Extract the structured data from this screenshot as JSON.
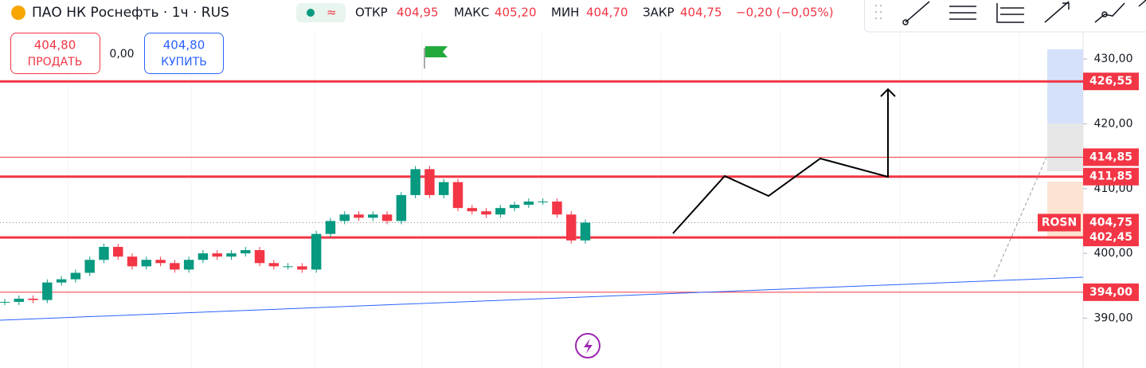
{
  "header": {
    "title": "ПАО НК Роснефть · 1ч · RUS",
    "open_label": "ОТКР",
    "open": "404,95",
    "high_label": "МАКС",
    "high": "405,20",
    "low_label": "МИН",
    "low": "404,70",
    "close_label": "ЗАКР",
    "close": "404,75",
    "change": "−0,20 (−0,05%)"
  },
  "trade": {
    "sell_price": "404,80",
    "sell": "ПРОДАТЬ",
    "spread": "0,00",
    "buy_price": "404,80",
    "buy": "КУПИТЬ"
  },
  "chart_data": {
    "type": "candlestick",
    "series": [
      {
        "name": "ROSN",
        "values": [
          392.5,
          393,
          392.8,
          395.5,
          396,
          397,
          399,
          401,
          399.5,
          398,
          399,
          398.5,
          397.5,
          399,
          400,
          399.5,
          400,
          400.5,
          398.5,
          398,
          398,
          397.5,
          403,
          405,
          406,
          405.5,
          406,
          405,
          409,
          413,
          409,
          411,
          407,
          406.5,
          406,
          407,
          407.5,
          408,
          408,
          406,
          402,
          404.75
        ]
      }
    ],
    "up_color": "#089981",
    "down_color": "#f23645",
    "ylim": [
      382.3,
      434.2
    ],
    "yticks": [
      {
        "value": 390,
        "label": "390,00"
      },
      {
        "value": 400,
        "label": "400,00"
      },
      {
        "value": 410,
        "label": "410,00"
      },
      {
        "value": 420,
        "label": "420,00"
      },
      {
        "value": 430,
        "label": "430,00"
      }
    ],
    "levels": [
      {
        "value": 426.55,
        "label": "426,55",
        "style": "thick"
      },
      {
        "value": 414.85,
        "label": "414,85",
        "style": "thin"
      },
      {
        "value": 411.85,
        "label": "411,85",
        "style": "thick"
      },
      {
        "value": 404.75,
        "label": "404,75",
        "style": "dotted"
      },
      {
        "value": 402.45,
        "label": "402,45",
        "style": "thick"
      },
      {
        "value": 394,
        "label": "394,00",
        "style": "thin"
      }
    ],
    "level_color": "#f23645"
  }
}
